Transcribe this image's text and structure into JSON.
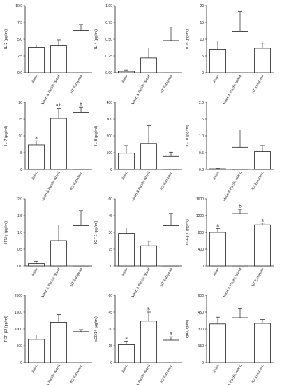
{
  "chart_data": [
    {
      "type": "bar",
      "ylabel": "IL-2 (pg/ml)",
      "ylim": [
        0,
        10
      ],
      "yticks": [
        "0.0",
        "2.5",
        "5.0",
        "7.5",
        "10.0"
      ],
      "categories": [
        "Asian",
        "Maori & Pacific Island",
        "NZ European"
      ],
      "values": [
        3.8,
        4.0,
        6.3
      ],
      "errors": [
        0.3,
        0.9,
        0.9
      ],
      "labels": [
        "",
        "",
        ""
      ]
    },
    {
      "type": "bar",
      "ylabel": "IL-4 (pg/ml)",
      "ylim": [
        0,
        1
      ],
      "yticks": [
        "0.00",
        "0.25",
        "0.50",
        "0.75",
        "1.00"
      ],
      "categories": [
        "Asian",
        "Maori & Pacific Island",
        "NZ European"
      ],
      "values": [
        0.02,
        0.22,
        0.48
      ],
      "errors": [
        0.02,
        0.15,
        0.2
      ],
      "labels": [
        "",
        "",
        ""
      ]
    },
    {
      "type": "bar",
      "ylabel": "IL-6 (pg/ml)",
      "ylim": [
        0,
        20
      ],
      "yticks": [
        "0",
        "5",
        "10",
        "15",
        "20"
      ],
      "categories": [
        "Asian",
        "Maori & Pacific Island",
        "NZ European"
      ],
      "values": [
        7.0,
        12.2,
        7.3
      ],
      "errors": [
        2.5,
        6.0,
        1.5
      ],
      "labels": [
        "",
        "",
        ""
      ]
    },
    {
      "type": "bar",
      "ylabel": "IL-7 (pg/ml)",
      "ylim": [
        0,
        20
      ],
      "yticks": [
        "0",
        "5",
        "10",
        "15",
        "20"
      ],
      "categories": [
        "Asian",
        "Maori & Pacific Island",
        "NZ European"
      ],
      "values": [
        7.3,
        15.2,
        17.0
      ],
      "errors": [
        1.2,
        3.0,
        1.5
      ],
      "labels": [
        "a",
        "a,b",
        "b"
      ]
    },
    {
      "type": "bar",
      "ylabel": "IL-8 (pg/ml)",
      "ylim": [
        0,
        400
      ],
      "yticks": [
        "0",
        "100",
        "200",
        "300",
        "400"
      ],
      "categories": [
        "Asian",
        "Maori & Pacific Island",
        "NZ European"
      ],
      "values": [
        97,
        155,
        78
      ],
      "errors": [
        45,
        105,
        25
      ],
      "labels": [
        "",
        "",
        ""
      ]
    },
    {
      "type": "bar",
      "ylabel": "IL-10 (pg/ml)",
      "ylim": [
        0,
        2
      ],
      "yticks": [
        "0.0",
        "0.5",
        "1.0",
        "1.5",
        "2.0"
      ],
      "categories": [
        "Asian",
        "Maori & Pacific Island",
        "NZ European"
      ],
      "values": [
        0.02,
        0.66,
        0.53
      ],
      "errors": [
        0.01,
        0.52,
        0.18
      ],
      "labels": [
        "",
        "",
        ""
      ]
    },
    {
      "type": "bar",
      "ylabel": "IFN-γ (pg/ml)",
      "ylim": [
        0,
        2
      ],
      "yticks": [
        "0.0",
        "0.5",
        "1.0",
        "1.5",
        "2.0"
      ],
      "categories": [
        "Asian",
        "Maori & Pacific Island",
        "NZ European"
      ],
      "values": [
        0.07,
        0.75,
        1.2
      ],
      "errors": [
        0.07,
        0.47,
        0.45
      ],
      "labels": [
        "",
        "",
        ""
      ]
    },
    {
      "type": "bar",
      "ylabel": "IGF-1 (pg/ml)",
      "ylim": [
        0,
        60
      ],
      "yticks": [
        "0",
        "15",
        "30",
        "45",
        "60"
      ],
      "categories": [
        "Asian",
        "Maori & Pacific Island",
        "NZ European"
      ],
      "values": [
        29,
        18,
        36
      ],
      "errors": [
        5,
        4,
        11
      ],
      "labels": [
        "",
        "",
        ""
      ]
    },
    {
      "type": "bar",
      "ylabel": "TGF-β1 (pg/ml)",
      "ylim": [
        0,
        1600
      ],
      "yticks": [
        "0",
        "400",
        "800",
        "1200",
        "1600"
      ],
      "categories": [
        "Asian",
        "Maori & Pacific Island",
        "NZ European"
      ],
      "values": [
        800,
        1250,
        980
      ],
      "errors": [
        90,
        100,
        40
      ],
      "labels": [
        "a",
        "b",
        "a"
      ]
    },
    {
      "type": "bar",
      "ylabel": "TGF-β2 (pg/ml)",
      "ylim": [
        0,
        2000
      ],
      "yticks": [
        "0",
        "500",
        "1000",
        "1500",
        "2000"
      ],
      "categories": [
        "Asian",
        "Maori & Pacific Island",
        "NZ European"
      ],
      "values": [
        690,
        1200,
        920
      ],
      "errors": [
        130,
        230,
        60
      ],
      "labels": [
        "",
        "",
        ""
      ]
    },
    {
      "type": "bar",
      "ylabel": "sCD14 (μg/ml)",
      "ylim": [
        0,
        60
      ],
      "yticks": [
        "0",
        "15",
        "30",
        "45",
        "60"
      ],
      "categories": [
        "Asian",
        "Maori & Pacific Island",
        "NZ European"
      ],
      "values": [
        16,
        37,
        20
      ],
      "errors": [
        3,
        8,
        3
      ],
      "labels": [
        "a",
        "b",
        "a"
      ]
    },
    {
      "type": "bar",
      "ylabel": "IgA (μg/ml)",
      "ylim": [
        0,
        600
      ],
      "yticks": [
        "0",
        "150",
        "300",
        "450",
        "600"
      ],
      "categories": [
        "Asian",
        "Maori & Pacific Island",
        "NZ European"
      ],
      "values": [
        345,
        400,
        350
      ],
      "errors": [
        60,
        85,
        35
      ],
      "labels": [
        "",
        "",
        ""
      ]
    }
  ]
}
